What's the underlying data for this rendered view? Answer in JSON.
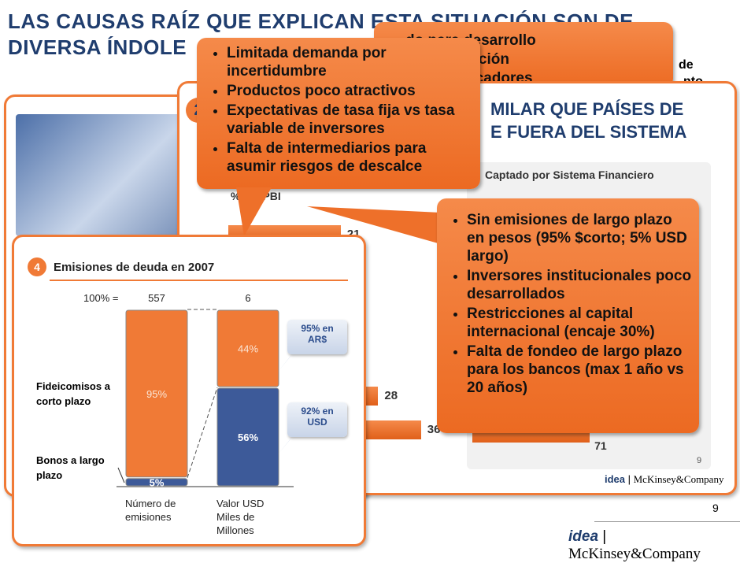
{
  "title": [
    "LAS CAUSAS RAÍZ QUE EXPLICAN ESTA SITUACIÓN SON DE",
    "DIVERSA ÍNDOLE"
  ],
  "back_callout": [
    "do para desarrollo",
    "va de inflación",
    "ad de indicadores"
  ],
  "back_right_fragments": [
    "de",
    "nto"
  ],
  "middle_slide": {
    "number": "2",
    "heading": [
      "MILAR QUE PAÍSES DE",
      "E FUERA DEL SISTEMA"
    ],
    "chart_title": "Captado por Sistema Financiero",
    "axis_label": "% del PBI",
    "bars": [
      21,
      28,
      36
    ],
    "right_bar": 71,
    "page": "9",
    "logo_idea": "idea",
    "logo_mck": "McKinsey&Company"
  },
  "callout_demand": [
    "Limitada demanda por incertidumbre",
    "Productos poco atractivos",
    "Expectativas de tasa fija vs tasa variable de inversores",
    "Falta de intermediarios para asumir riesgos de descalce"
  ],
  "callout_supply": [
    "Sin emisiones de largo plazo en pesos (95% $corto; 5% USD largo)",
    "Inversores institucionales poco desarrollados",
    "Restricciones al capital internacional (encaje 30%)",
    "Falta de fondeo de largo plazo para los bancos (max 1 año vs 20 años)"
  ],
  "front_slide": {
    "number": "4",
    "title": "Emisiones de deuda en 2007",
    "total_label": "100% =",
    "segment_labels": [
      "Fideicomisos a corto plazo",
      "Bonos a largo plazo"
    ],
    "stacks": [
      {
        "name": "Número de emisiones",
        "total": "557",
        "values": [
          95,
          5
        ],
        "value_labels": [
          "95%",
          "5%"
        ]
      },
      {
        "name": "Valor USD Miles de Millones",
        "total": "6",
        "values": [
          44,
          56
        ],
        "value_labels": [
          "44%",
          "56%"
        ]
      }
    ],
    "ylim": [
      0,
      100
    ],
    "colors": [
      "#f07a36",
      "#3d5a99"
    ],
    "notes": [
      "95% en AR$",
      "92% en USD"
    ]
  },
  "footer": {
    "page": "9",
    "logo_idea": "idea",
    "logo_mck": "McKinsey&Company"
  }
}
